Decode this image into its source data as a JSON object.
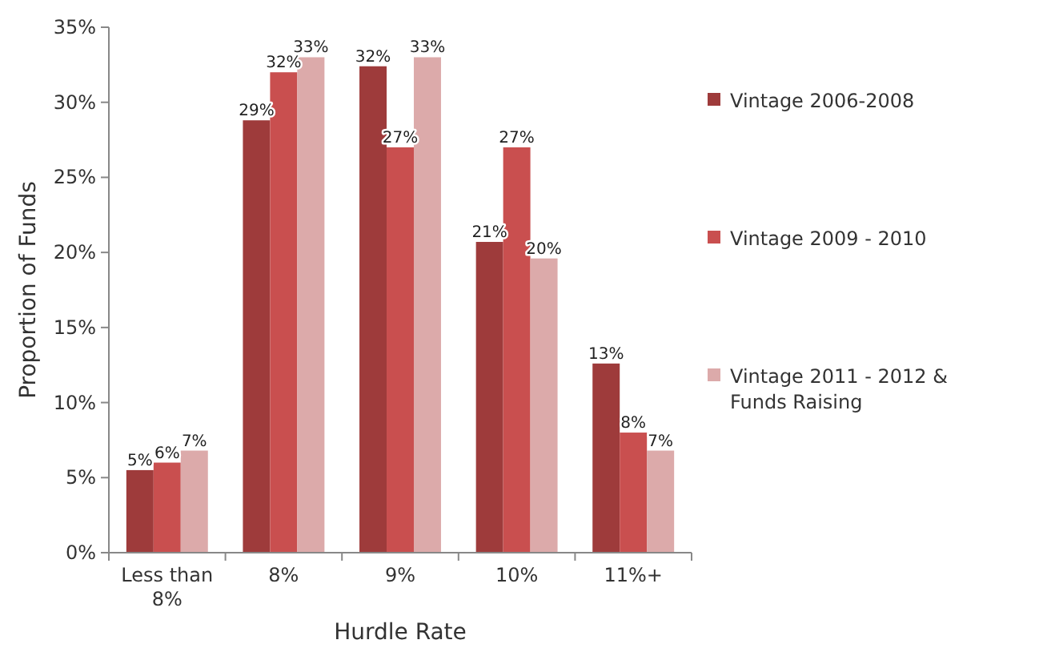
{
  "chart_data": {
    "type": "bar",
    "xlabel": "Hurdle Rate",
    "ylabel": "Proportion of Funds",
    "categories": [
      "Less than 8%",
      "8%",
      "9%",
      "10%",
      "11%+"
    ],
    "series": [
      {
        "name": "Vintage 2006-2008",
        "color": "#9e3b3b",
        "values": [
          5.5,
          28.8,
          32.4,
          20.7,
          12.6
        ],
        "value_labels": [
          "5%",
          "29%",
          "32%",
          "21%",
          "13%"
        ]
      },
      {
        "name": "Vintage 2009 - 2010",
        "color": "#c94f4f",
        "values": [
          6,
          32,
          27,
          27,
          8
        ],
        "value_labels": [
          "6%",
          "32%",
          "27%",
          "27%",
          "8%"
        ]
      },
      {
        "name": "Vintage 2011 - 2012 & Funds Raising",
        "color": "#dcaaaa",
        "values": [
          6.8,
          33,
          33,
          19.6,
          6.8
        ],
        "value_labels": [
          "7%",
          "33%",
          "33%",
          "20%",
          "7%"
        ]
      }
    ],
    "ylim": [
      0,
      35
    ],
    "yticks": [
      {
        "value": 0,
        "label": "0%"
      },
      {
        "value": 5,
        "label": "5%"
      },
      {
        "value": 10,
        "label": "10%"
      },
      {
        "value": 15,
        "label": "15%"
      },
      {
        "value": 20,
        "label": "20%"
      },
      {
        "value": 25,
        "label": "25%"
      },
      {
        "value": 30,
        "label": "30%"
      },
      {
        "value": 35,
        "label": "35%"
      }
    ],
    "grid": false,
    "legend": "right"
  }
}
